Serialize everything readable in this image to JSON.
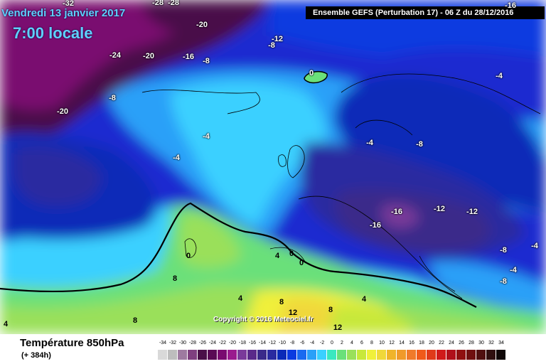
{
  "header": {
    "date": "Vendredi 13 janvier 2017",
    "time": "7:00 locale",
    "run_info": "Ensemble GEFS  (Perturbation 17)  -  06 Z du 28/12/2016"
  },
  "map": {
    "copyright": "Copyright © 2016 Meteociel.fr",
    "labels": [
      {
        "text": "-32"
      },
      {
        "text": "-28"
      },
      {
        "text": "-28"
      },
      {
        "text": "-20"
      },
      {
        "text": "-24"
      },
      {
        "text": "-20"
      },
      {
        "text": "-16"
      },
      {
        "text": "-8"
      },
      {
        "text": "-12"
      },
      {
        "text": "-8"
      },
      {
        "text": "-8"
      },
      {
        "text": "-20"
      },
      {
        "text": "-4"
      },
      {
        "text": "-4"
      },
      {
        "text": "0"
      },
      {
        "text": "-16"
      },
      {
        "text": "-4"
      },
      {
        "text": "-4"
      },
      {
        "text": "-8"
      },
      {
        "text": "-16"
      },
      {
        "text": "-12"
      },
      {
        "text": "-12"
      },
      {
        "text": "-16"
      },
      {
        "text": "0"
      },
      {
        "text": "4"
      },
      {
        "text": "0"
      },
      {
        "text": "0"
      },
      {
        "text": "-8"
      },
      {
        "text": "-4"
      },
      {
        "text": "-4"
      },
      {
        "text": "-8"
      },
      {
        "text": "4"
      },
      {
        "text": "8"
      },
      {
        "text": "8"
      },
      {
        "text": "4"
      },
      {
        "text": "8"
      },
      {
        "text": "8"
      },
      {
        "text": "12"
      },
      {
        "text": "12"
      },
      {
        "text": "4"
      }
    ]
  },
  "footer": {
    "variable": "Température 850hPa",
    "forecast": "(+ 384h)"
  },
  "legend": {
    "labels": [
      "-34",
      "-32",
      "-30",
      "-28",
      "-26",
      "-24",
      "-22",
      "-20",
      "-18",
      "-16",
      "-14",
      "-12",
      "-10",
      "-8",
      "-6",
      "-4",
      "-2",
      "0",
      "2",
      "4",
      "6",
      "8",
      "10",
      "12",
      "14",
      "16",
      "18",
      "20",
      "22",
      "24",
      "26",
      "28",
      "30",
      "32",
      "34"
    ],
    "colors": [
      "#d9d9d9",
      "#bdbdbd",
      "#9e7aa0",
      "#7f3f7f",
      "#4a1048",
      "#5a0a55",
      "#7a0a70",
      "#9a1a8e",
      "#7a3a9a",
      "#5a2a8a",
      "#3a2a8a",
      "#2a2aa0",
      "#0a2ab8",
      "#0a3ae0",
      "#1a6af0",
      "#2aa0f8",
      "#3ad0ff",
      "#3ae8c0",
      "#6ae07a",
      "#9ae05a",
      "#c8e83a",
      "#f0f03a",
      "#f0d83a",
      "#f0b42a",
      "#f09a2a",
      "#f07a2a",
      "#f05a1a",
      "#e03a1a",
      "#d01a1a",
      "#b0101a",
      "#901010",
      "#701010",
      "#501010",
      "#301010",
      "#100808"
    ]
  }
}
